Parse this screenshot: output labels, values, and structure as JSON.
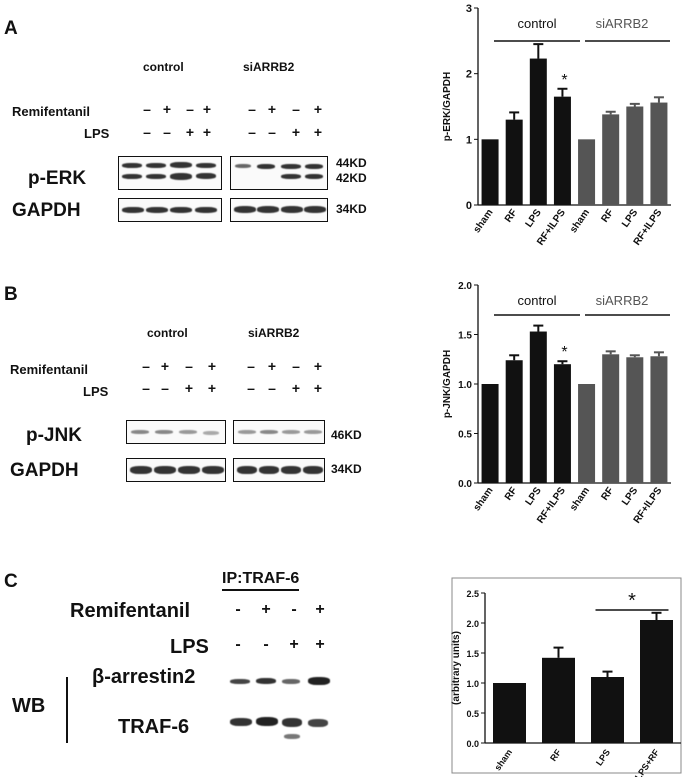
{
  "panelA": {
    "letter": "A",
    "groups": [
      "control",
      "siARRB2"
    ],
    "rows": [
      "Remifentanil",
      "LPS"
    ],
    "remi_signs": [
      "–",
      "+",
      "–",
      "+",
      "–",
      "+",
      "–",
      "+"
    ],
    "lps_signs": [
      "–",
      "–",
      "+",
      "+",
      "–",
      "–",
      "+",
      "+"
    ],
    "blot_labels": [
      "p-ERK",
      "GAPDH"
    ],
    "kd": [
      "44KD",
      "42KD",
      "34KD"
    ]
  },
  "panelB": {
    "letter": "B",
    "groups": [
      "control",
      "siARRB2"
    ],
    "rows": [
      "Remifentanil",
      "LPS"
    ],
    "remi_signs": [
      "–",
      "+",
      "–",
      "+",
      "–",
      "+",
      "–",
      "+"
    ],
    "lps_signs": [
      "–",
      "–",
      "+",
      "+",
      "–",
      "–",
      "+",
      "+"
    ],
    "blot_labels": [
      "p-JNK",
      "GAPDH"
    ],
    "kd": [
      "46KD",
      "34KD"
    ]
  },
  "panelC": {
    "letter": "C",
    "ip_label": "IP:TRAF-6",
    "rows": [
      "Remifentanil",
      "LPS"
    ],
    "remi_signs": [
      "-",
      "+",
      "-",
      "+"
    ],
    "lps_signs": [
      "-",
      "-",
      "+",
      "+"
    ],
    "wb": "WB",
    "blot_labels": [
      "β-arrestin2",
      "TRAF-6"
    ]
  },
  "chart_data": [
    {
      "type": "bar",
      "panel": "A",
      "ylabel": "p-ERK/GAPDH",
      "ylim": [
        0,
        3
      ],
      "yticks": [
        0,
        1,
        2,
        3
      ],
      "categories": [
        "sham",
        "RF",
        "LPS",
        "RF+lLPS",
        "sham",
        "RF",
        "LPS",
        "RF+lLPS"
      ],
      "values": [
        1.0,
        1.3,
        2.23,
        1.65,
        1.0,
        1.38,
        1.5,
        1.56
      ],
      "errors": [
        0,
        0.11,
        0.22,
        0.12,
        0,
        0.04,
        0.04,
        0.08
      ],
      "group_labels": [
        "control",
        "siARRB2"
      ],
      "annotations": [
        {
          "bar": 3,
          "text": "*"
        }
      ],
      "colors": [
        "#111111",
        "#111111",
        "#111111",
        "#111111",
        "#555555",
        "#555555",
        "#555555",
        "#555555"
      ]
    },
    {
      "type": "bar",
      "panel": "B",
      "ylabel": "p-JNK/GAPDH",
      "ylim": [
        0,
        2
      ],
      "yticks": [
        "0.0",
        "0.5",
        "1.0",
        "1.5",
        "2.0"
      ],
      "categories": [
        "sham",
        "RF",
        "LPS",
        "RF+lLPS",
        "sham",
        "RF",
        "LPS",
        "RF+lLPS"
      ],
      "values": [
        1.0,
        1.24,
        1.53,
        1.2,
        1.0,
        1.3,
        1.27,
        1.28
      ],
      "errors": [
        0,
        0.05,
        0.06,
        0.03,
        0,
        0.03,
        0.02,
        0.04
      ],
      "group_labels": [
        "control",
        "siARRB2"
      ],
      "annotations": [
        {
          "bar": 3,
          "text": "*"
        }
      ],
      "colors": [
        "#111111",
        "#111111",
        "#111111",
        "#111111",
        "#555555",
        "#555555",
        "#555555",
        "#555555"
      ]
    },
    {
      "type": "bar",
      "panel": "C",
      "ylabel": "(arbitrary units)",
      "ylim": [
        0,
        2.5
      ],
      "yticks": [
        "0.0",
        "0.5",
        "1.0",
        "1.5",
        "2.0",
        "2.5"
      ],
      "categories": [
        "sham",
        "RF",
        "LPS",
        "LPS+RF"
      ],
      "values": [
        1.0,
        1.42,
        1.1,
        2.05
      ],
      "errors": [
        0,
        0.17,
        0.09,
        0.12
      ],
      "annotations": [
        {
          "from": 2,
          "to": 3,
          "text": "*"
        }
      ],
      "colors": [
        "#111111",
        "#111111",
        "#111111",
        "#111111"
      ]
    }
  ]
}
